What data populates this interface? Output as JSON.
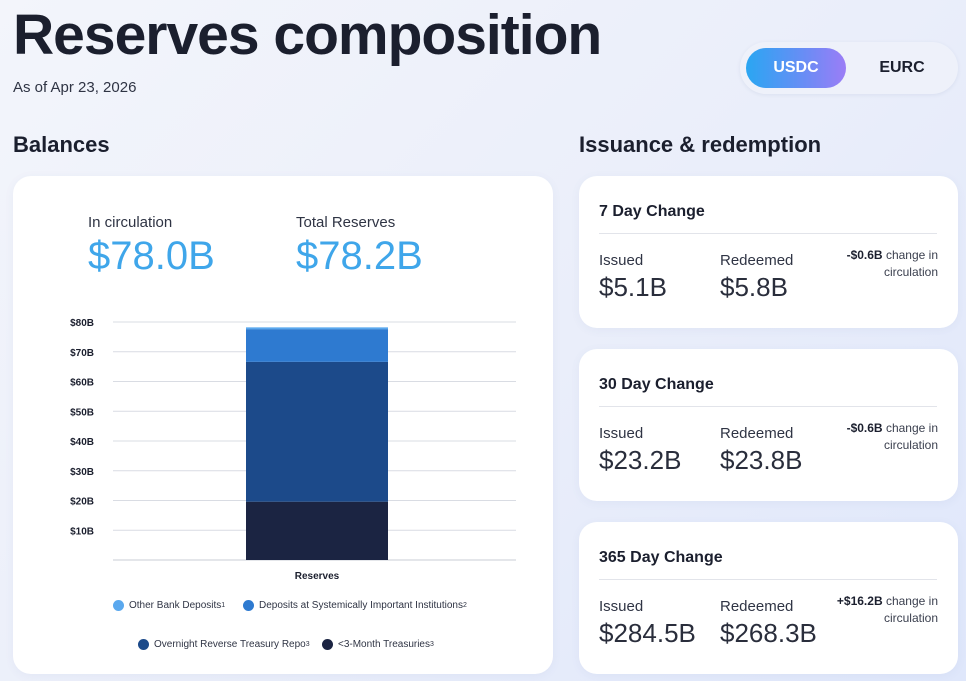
{
  "header": {
    "title": "Reserves composition",
    "as_of": "As of Apr 23, 2026"
  },
  "toggle": {
    "options": [
      "USDC",
      "EURC"
    ],
    "selected": "USDC"
  },
  "balances": {
    "section_title": "Balances",
    "in_circulation_label": "In circulation",
    "in_circulation_value": "$78.0B",
    "total_reserves_label": "Total Reserves",
    "total_reserves_value": "$78.2B"
  },
  "chart_data": {
    "type": "bar",
    "stacked": true,
    "categories": [
      "Reserves"
    ],
    "xlabel": "Reserves",
    "ylim": [
      0,
      80
    ],
    "y_ticks": [
      "$10B",
      "$20B",
      "$30B",
      "$40B",
      "$50B",
      "$60B",
      "$70B",
      "$80B"
    ],
    "grid": true,
    "series": [
      {
        "name": "<3-Month Treasuries",
        "sup": "3",
        "values": [
          19.6
        ],
        "color": "#1b2442"
      },
      {
        "name": "Overnight Reverse Treasury Repo",
        "sup": "3",
        "values": [
          47.0
        ],
        "color": "#1c4a8a"
      },
      {
        "name": "Deposits at Systemically Important Institutions",
        "sup": "2",
        "values": [
          11.0
        ],
        "color": "#2e7ad0"
      },
      {
        "name": "Other Bank Deposits",
        "sup": "1",
        "values": [
          0.6
        ],
        "color": "#5aa8ee"
      }
    ]
  },
  "issuance": {
    "section_title": "Issuance & redemption",
    "cards": [
      {
        "title": "7 Day Change",
        "issued_label": "Issued",
        "issued": "$5.1B",
        "redeemed_label": "Redeemed",
        "redeemed": "$5.8B",
        "change_amount": "-$0.6B",
        "change_text": " change in circulation"
      },
      {
        "title": "30 Day Change",
        "issued_label": "Issued",
        "issued": "$23.2B",
        "redeemed_label": "Redeemed",
        "redeemed": "$23.8B",
        "change_amount": "-$0.6B",
        "change_text": " change in circulation"
      },
      {
        "title": "365 Day Change",
        "issued_label": "Issued",
        "issued": "$284.5B",
        "redeemed_label": "Redeemed",
        "redeemed": "$268.3B",
        "change_amount": "+$16.2B",
        "change_text": " change in circulation"
      }
    ]
  }
}
